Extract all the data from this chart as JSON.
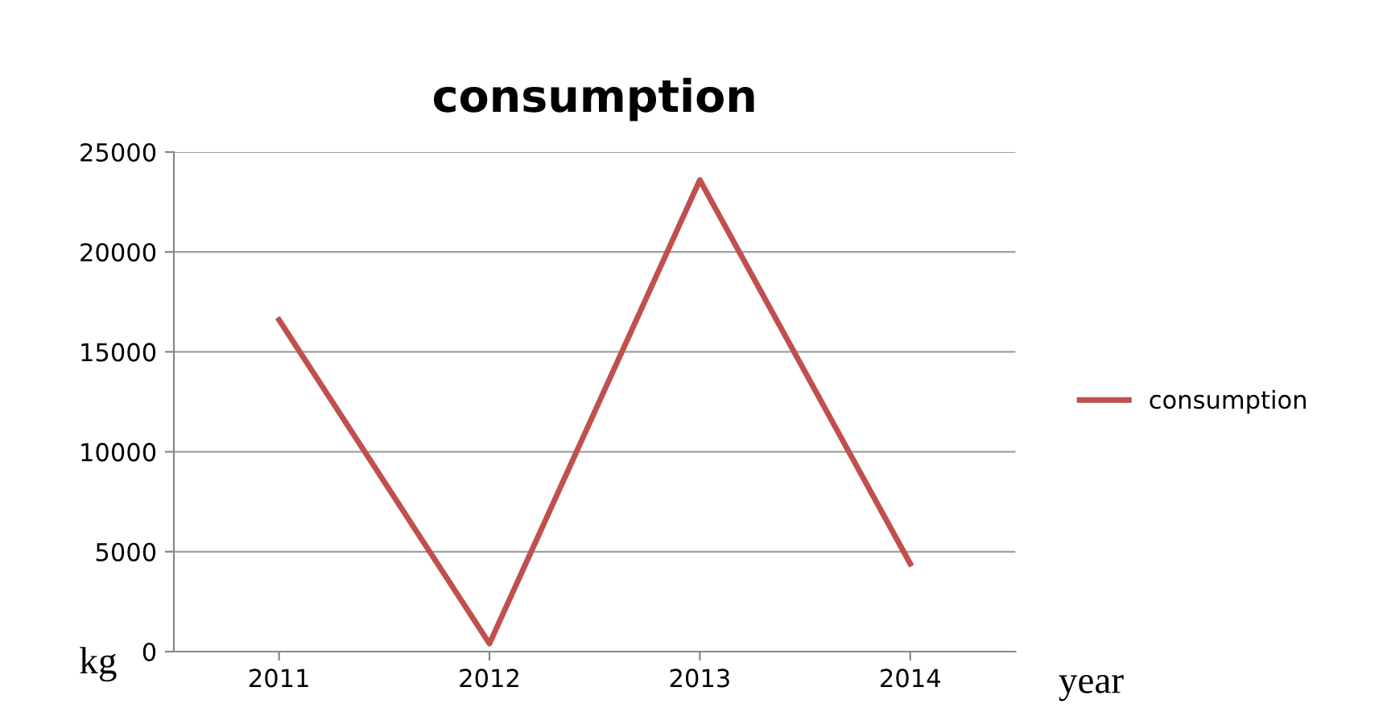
{
  "chart_data": {
    "type": "line",
    "title": "consumption",
    "xlabel": "year",
    "ylabel": "kg",
    "categories": [
      "2011",
      "2012",
      "2013",
      "2014"
    ],
    "series": [
      {
        "name": "consumption",
        "color": "#c0504d",
        "values": [
          16600,
          400,
          23600,
          4400
        ]
      }
    ],
    "ylim": [
      0,
      25000
    ],
    "yticks": [
      0,
      5000,
      10000,
      15000,
      20000,
      25000
    ],
    "grid": "y",
    "legend": "right",
    "marker": "none",
    "line_style": "solid"
  }
}
